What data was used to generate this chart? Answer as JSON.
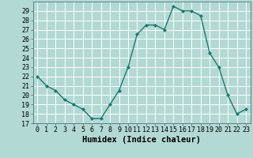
{
  "x": [
    0,
    1,
    2,
    3,
    4,
    5,
    6,
    7,
    8,
    9,
    10,
    11,
    12,
    13,
    14,
    15,
    16,
    17,
    18,
    19,
    20,
    21,
    22,
    23
  ],
  "y": [
    22,
    21,
    20.5,
    19.5,
    19,
    18.5,
    17.5,
    17.5,
    19,
    20.5,
    23,
    26.5,
    27.5,
    27.5,
    27,
    29.5,
    29,
    29,
    28.5,
    24.5,
    23,
    20,
    18,
    18.5
  ],
  "line_color": "#1a7a6e",
  "marker": "D",
  "marker_size": 2.0,
  "bg_color": "#b3d9d4",
  "grid_color": "#ffffff",
  "xlabel": "Humidex (Indice chaleur)",
  "xlim": [
    -0.5,
    23.5
  ],
  "ylim": [
    17,
    30
  ],
  "yticks": [
    17,
    18,
    19,
    20,
    21,
    22,
    23,
    24,
    25,
    26,
    27,
    28,
    29
  ],
  "xticks": [
    0,
    1,
    2,
    3,
    4,
    5,
    6,
    7,
    8,
    9,
    10,
    11,
    12,
    13,
    14,
    15,
    16,
    17,
    18,
    19,
    20,
    21,
    22,
    23
  ],
  "tick_label_fontsize": 6.0,
  "xlabel_fontsize": 7.5,
  "line_width": 1.0
}
